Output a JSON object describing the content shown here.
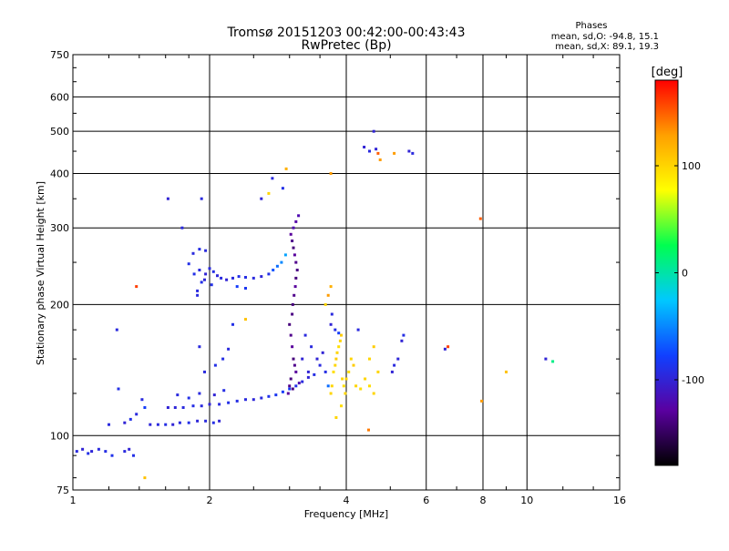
{
  "chart_data": {
    "type": "scatter",
    "title": "Tromsø 20151203 00:42:00-00:43:43",
    "subtitle": "RwPretec (Bp)",
    "xlabel": "Frequency [MHz]",
    "ylabel": "Stationary phase Virtual Height [km]",
    "x_scale": "log",
    "y_scale": "log",
    "xlim": [
      1,
      16
    ],
    "ylim": [
      75,
      750
    ],
    "x_ticks": [
      {
        "value": 1,
        "label": "1"
      },
      {
        "value": 2,
        "label": "2"
      },
      {
        "value": 4,
        "label": "4"
      },
      {
        "value": 6,
        "label": "6"
      },
      {
        "value": 8,
        "label": "8"
      },
      {
        "value": 10,
        "label": "10"
      },
      {
        "value": 16,
        "label": "16"
      }
    ],
    "y_ticks": [
      {
        "value": 75,
        "label": "75"
      },
      {
        "value": 100,
        "label": "100"
      },
      {
        "value": 200,
        "label": "200"
      },
      {
        "value": 300,
        "label": "300"
      },
      {
        "value": 400,
        "label": "400"
      },
      {
        "value": 500,
        "label": "500"
      },
      {
        "value": 600,
        "label": "600"
      },
      {
        "value": 750,
        "label": "750"
      }
    ],
    "grid": true,
    "stats": {
      "heading": "Phases",
      "line_o": "mean, sd,O: -94.8, 15.1",
      "line_x": "mean, sd,X:  89.1, 19.3"
    },
    "colorbar": {
      "label": "[deg]",
      "range": [
        -180,
        180
      ],
      "ticks": [
        {
          "value": 100,
          "label": "100"
        },
        {
          "value": 0,
          "label": "0"
        },
        {
          "value": -100,
          "label": "-100"
        }
      ],
      "colors": [
        "#000000",
        "#5a00a0",
        "#1040ff",
        "#00c8ff",
        "#00ff50",
        "#ffff00",
        "#ffa000",
        "#ff0000"
      ]
    },
    "series": [
      {
        "note_points": "f (MHz), h (km), phase (deg)",
        "points": [
          [
            1.02,
            92,
            -95
          ],
          [
            1.05,
            93,
            -100
          ],
          [
            1.08,
            91,
            -90
          ],
          [
            1.1,
            92,
            -98
          ],
          [
            1.14,
            93,
            -95
          ],
          [
            1.18,
            92,
            -92
          ],
          [
            1.22,
            90,
            -88
          ],
          [
            1.3,
            92,
            -95
          ],
          [
            1.33,
            93,
            -100
          ],
          [
            1.36,
            90,
            -90
          ],
          [
            1.26,
            128,
            -90
          ],
          [
            1.25,
            175,
            -95
          ],
          [
            1.38,
            220,
            160
          ],
          [
            1.44,
            80,
            110
          ],
          [
            1.42,
            121,
            -95
          ],
          [
            1.2,
            106,
            -95
          ],
          [
            1.3,
            107,
            -100
          ],
          [
            1.34,
            109,
            -90
          ],
          [
            1.38,
            112,
            -95
          ],
          [
            1.44,
            116,
            -80
          ],
          [
            1.48,
            106,
            -98
          ],
          [
            1.54,
            106,
            -95
          ],
          [
            1.6,
            106,
            -92
          ],
          [
            1.66,
            106,
            -100
          ],
          [
            1.72,
            107,
            -95
          ],
          [
            1.8,
            107,
            -90
          ],
          [
            1.88,
            108,
            -98
          ],
          [
            1.96,
            108,
            -95
          ],
          [
            2.04,
            107,
            -92
          ],
          [
            2.1,
            108,
            -100
          ],
          [
            1.62,
            116,
            -100
          ],
          [
            1.68,
            116,
            -98
          ],
          [
            1.75,
            116,
            -95
          ],
          [
            1.84,
            117,
            -92
          ],
          [
            1.92,
            117,
            -95
          ],
          [
            2.0,
            118,
            -100
          ],
          [
            2.1,
            118,
            -95
          ],
          [
            2.2,
            119,
            -90
          ],
          [
            2.3,
            120,
            -92
          ],
          [
            2.4,
            121,
            -95
          ],
          [
            2.5,
            121,
            -98
          ],
          [
            2.6,
            122,
            -95
          ],
          [
            2.7,
            123,
            -88
          ],
          [
            2.8,
            124,
            -85
          ],
          [
            2.9,
            126,
            -80
          ],
          [
            3.0,
            128,
            -82
          ],
          [
            3.1,
            130,
            -90
          ],
          [
            3.2,
            133,
            -95
          ],
          [
            3.3,
            136,
            -100
          ],
          [
            3.4,
            138,
            -92
          ],
          [
            1.7,
            124,
            -95
          ],
          [
            1.8,
            122,
            -90
          ],
          [
            1.9,
            125,
            -95
          ],
          [
            2.05,
            124,
            -100
          ],
          [
            2.15,
            127,
            -92
          ],
          [
            1.95,
            140,
            -95
          ],
          [
            2.06,
            145,
            -90
          ],
          [
            2.14,
            150,
            -92
          ],
          [
            2.2,
            158,
            -95
          ],
          [
            1.9,
            160,
            -95
          ],
          [
            1.88,
            215,
            -95
          ],
          [
            1.92,
            225,
            -90
          ],
          [
            1.96,
            235,
            -100
          ],
          [
            2.0,
            242,
            -95
          ],
          [
            2.04,
            238,
            -92
          ],
          [
            2.08,
            233,
            -98
          ],
          [
            2.12,
            230,
            -95
          ],
          [
            2.18,
            228,
            -100
          ],
          [
            2.25,
            230,
            -95
          ],
          [
            2.32,
            232,
            -90
          ],
          [
            2.4,
            231,
            -92
          ],
          [
            2.5,
            230,
            -95
          ],
          [
            2.6,
            232,
            -98
          ],
          [
            2.7,
            235,
            -90
          ],
          [
            2.76,
            240,
            -70
          ],
          [
            2.82,
            245,
            -60
          ],
          [
            2.88,
            250,
            -50
          ],
          [
            2.94,
            260,
            -40
          ],
          [
            1.8,
            248,
            -90
          ],
          [
            1.84,
            262,
            -95
          ],
          [
            1.9,
            268,
            -92
          ],
          [
            1.96,
            266,
            -95
          ],
          [
            1.85,
            235,
            -90
          ],
          [
            1.9,
            240,
            -95
          ],
          [
            1.95,
            228,
            -98
          ],
          [
            2.02,
            222,
            -90
          ],
          [
            1.88,
            210,
            -95
          ],
          [
            2.3,
            220,
            -80
          ],
          [
            2.4,
            218,
            -85
          ],
          [
            2.25,
            180,
            -90
          ],
          [
            3.0,
            180,
            -140
          ],
          [
            3.02,
            170,
            -135
          ],
          [
            3.04,
            160,
            -130
          ],
          [
            3.06,
            150,
            -140
          ],
          [
            3.08,
            145,
            -135
          ],
          [
            3.1,
            140,
            -130
          ],
          [
            3.05,
            200,
            -140
          ],
          [
            3.07,
            210,
            -135
          ],
          [
            3.09,
            220,
            -130
          ],
          [
            3.1,
            230,
            -140
          ],
          [
            3.12,
            240,
            -138
          ],
          [
            3.1,
            250,
            -135
          ],
          [
            3.08,
            260,
            -130
          ],
          [
            3.06,
            270,
            -140
          ],
          [
            3.04,
            280,
            -135
          ],
          [
            3.02,
            290,
            -130
          ],
          [
            3.06,
            300,
            -120
          ],
          [
            3.1,
            310,
            -125
          ],
          [
            3.14,
            320,
            -120
          ],
          [
            3.04,
            190,
            -138
          ],
          [
            3.02,
            135,
            -140
          ],
          [
            3.0,
            130,
            -135
          ],
          [
            2.98,
            125,
            -130
          ],
          [
            3.05,
            128,
            -138
          ],
          [
            3.15,
            132,
            -120
          ],
          [
            3.2,
            150,
            -100
          ],
          [
            3.25,
            170,
            -95
          ],
          [
            3.3,
            140,
            -100
          ],
          [
            3.35,
            160,
            -95
          ],
          [
            3.45,
            150,
            -100
          ],
          [
            3.5,
            145,
            -95
          ],
          [
            3.55,
            155,
            -100
          ],
          [
            3.6,
            140,
            -92
          ],
          [
            3.65,
            130,
            -60
          ],
          [
            3.7,
            125,
            100
          ],
          [
            3.72,
            130,
            100
          ],
          [
            3.75,
            140,
            95
          ],
          [
            3.78,
            145,
            100
          ],
          [
            3.8,
            150,
            105
          ],
          [
            3.82,
            155,
            100
          ],
          [
            3.85,
            160,
            95
          ],
          [
            3.88,
            165,
            100
          ],
          [
            3.9,
            170,
            105
          ],
          [
            3.92,
            135,
            100
          ],
          [
            3.95,
            130,
            95
          ],
          [
            3.98,
            125,
            100
          ],
          [
            4.0,
            135,
            100
          ],
          [
            4.05,
            140,
            95
          ],
          [
            4.1,
            150,
            100
          ],
          [
            4.15,
            145,
            105
          ],
          [
            4.2,
            130,
            100
          ],
          [
            4.3,
            128,
            95
          ],
          [
            4.4,
            135,
            100
          ],
          [
            4.5,
            150,
            100
          ],
          [
            4.6,
            160,
            105
          ],
          [
            4.7,
            140,
            100
          ],
          [
            4.5,
            130,
            95
          ],
          [
            4.6,
            125,
            100
          ],
          [
            3.8,
            110,
            100
          ],
          [
            3.9,
            117,
            95
          ],
          [
            3.7,
            180,
            -100
          ],
          [
            3.72,
            190,
            -95
          ],
          [
            3.78,
            175,
            -92
          ],
          [
            3.85,
            172,
            -80
          ],
          [
            4.25,
            175,
            -95
          ],
          [
            5.05,
            140,
            -100
          ],
          [
            5.1,
            145,
            -95
          ],
          [
            5.2,
            150,
            -98
          ],
          [
            5.3,
            165,
            -100
          ],
          [
            5.35,
            170,
            -92
          ],
          [
            3.6,
            200,
            100
          ],
          [
            3.65,
            210,
            130
          ],
          [
            3.7,
            220,
            120
          ],
          [
            2.95,
            410,
            120
          ],
          [
            2.6,
            350,
            -100
          ],
          [
            2.75,
            390,
            -95
          ],
          [
            2.7,
            360,
            100
          ],
          [
            1.92,
            350,
            -95
          ],
          [
            2.9,
            370,
            -90
          ],
          [
            4.38,
            460,
            -100
          ],
          [
            4.5,
            450,
            -95
          ],
          [
            4.65,
            455,
            -100
          ],
          [
            4.7,
            445,
            150
          ],
          [
            4.75,
            430,
            130
          ],
          [
            5.1,
            445,
            130
          ],
          [
            5.5,
            450,
            -100
          ],
          [
            5.6,
            445,
            -95
          ],
          [
            4.6,
            500,
            -100
          ],
          [
            7.9,
            315,
            150
          ],
          [
            6.6,
            158,
            -100
          ],
          [
            6.7,
            160,
            160
          ],
          [
            7.95,
            120,
            130
          ],
          [
            9.0,
            140,
            110
          ],
          [
            11.0,
            150,
            -100
          ],
          [
            11.4,
            148,
            10
          ],
          [
            3.7,
            400,
            130
          ],
          [
            4.48,
            103,
            140
          ],
          [
            1.62,
            350,
            -100
          ],
          [
            1.74,
            300,
            -95
          ],
          [
            2.4,
            185,
            110
          ]
        ]
      }
    ]
  }
}
